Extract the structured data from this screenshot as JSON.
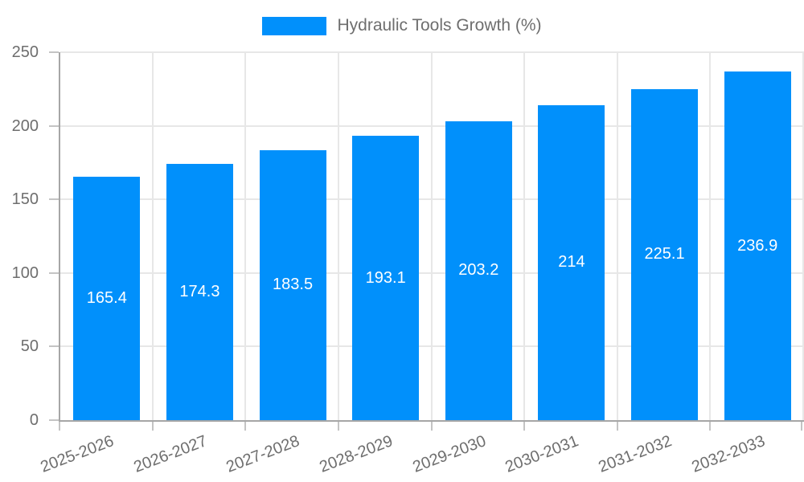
{
  "legend": {
    "label": "Hydraulic Tools Growth (%)"
  },
  "colors": {
    "bar": "#0190fb",
    "axis_line": "#a6a6a6",
    "grid_line": "#e7e7e7",
    "tick_mark": "#c4c4c4",
    "axis_text": "#6e6e6e",
    "value_label_text": "#ffffff",
    "background": "#ffffff"
  },
  "chart_data": {
    "type": "bar",
    "title": "Hydraulic Tools Growth (%)",
    "categories": [
      "2025-2026",
      "2026-2027",
      "2027-2028",
      "2028-2029",
      "2029-2030",
      "2030-2031",
      "2031-2032",
      "2032-2033"
    ],
    "series": [
      {
        "name": "Hydraulic Tools Growth (%)",
        "values": [
          165.4,
          174.3,
          183.5,
          193.1,
          203.2,
          214,
          225.1,
          236.9
        ],
        "value_labels": [
          "165.4",
          "174.3",
          "183.5",
          "193.1",
          "203.2",
          "214",
          "225.1",
          "236.9"
        ]
      }
    ],
    "xlabel": "",
    "ylabel": "",
    "ylim": [
      0,
      250
    ],
    "yticks": [
      0,
      50,
      100,
      150,
      200,
      250
    ],
    "grid": true,
    "legend_position": "top",
    "value_labels_inside_bars": true
  }
}
